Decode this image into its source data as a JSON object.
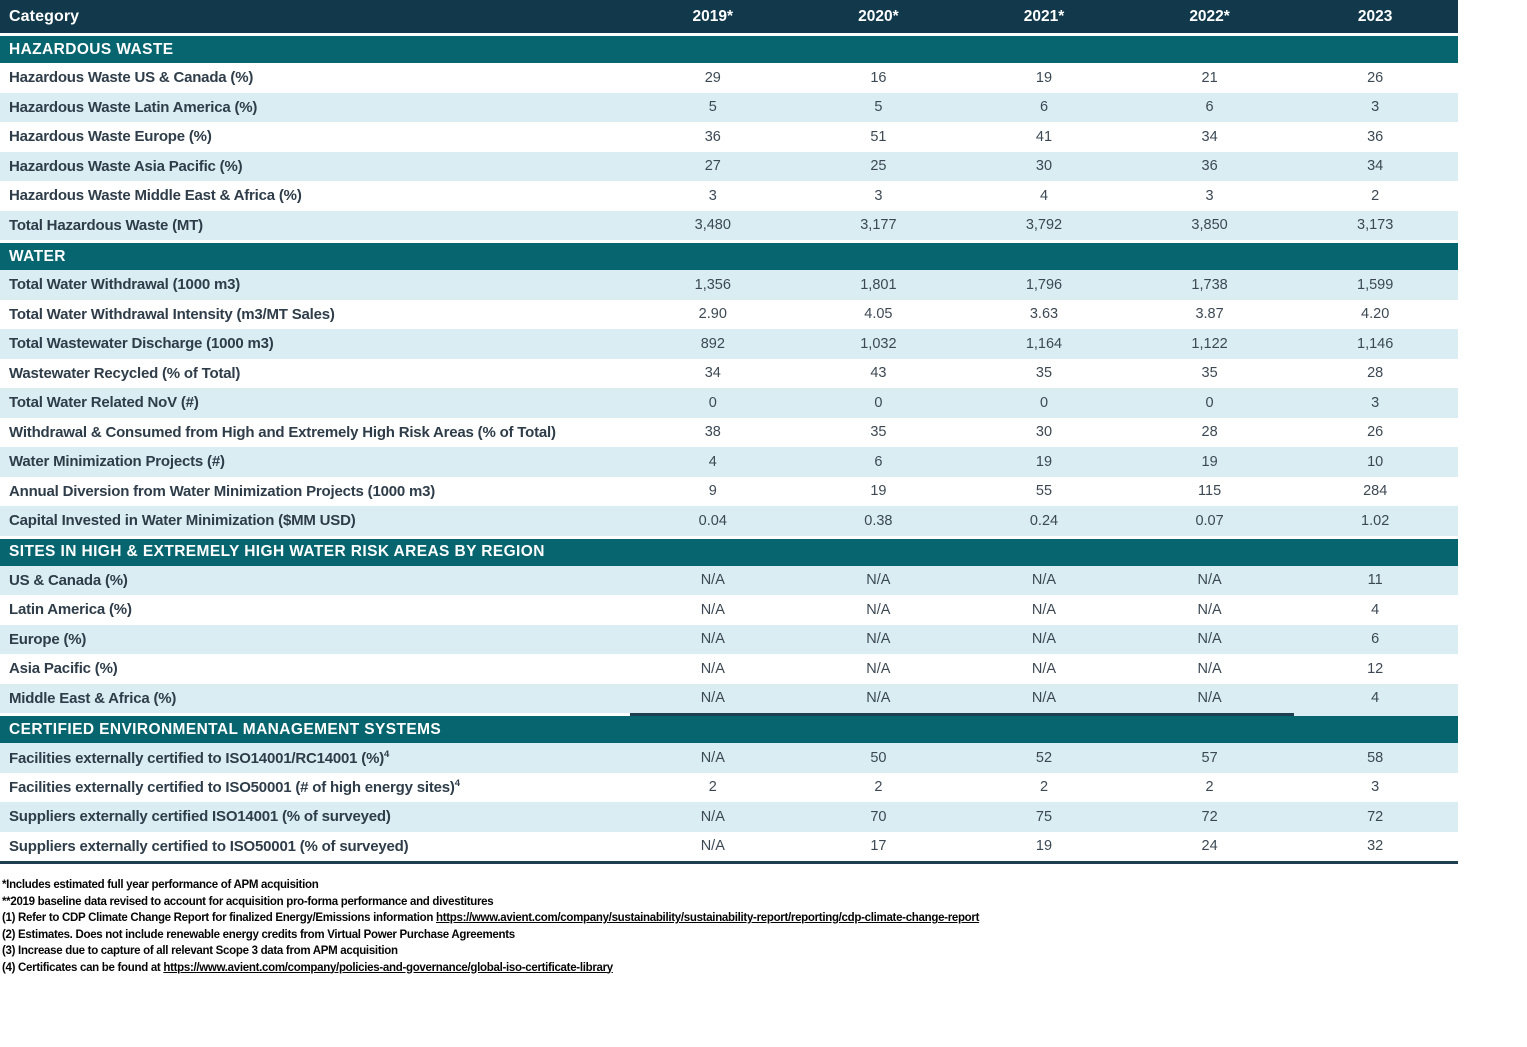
{
  "colors": {
    "header_bg": "#11394b",
    "header_text": "#ffffff",
    "section_bg": "#06656f",
    "row_light": "#d9edf2",
    "label_text": "#2e3d49",
    "value_text": "#3c4954",
    "rule_dark": "#1e3f50"
  },
  "table": {
    "header": {
      "category_label": "Category",
      "years": [
        "2019*",
        "2020*",
        "2021*",
        "2022*",
        "2023"
      ]
    },
    "sections": [
      {
        "title": "HAZARDOUS WASTE",
        "first_row_shade": "white",
        "rows": [
          {
            "label": "Hazardous Waste US & Canada (%)",
            "values": [
              "29",
              "16",
              "19",
              "21",
              "26"
            ]
          },
          {
            "label": "Hazardous Waste Latin America (%)",
            "values": [
              "5",
              "5",
              "6",
              "6",
              "3"
            ]
          },
          {
            "label": "Hazardous Waste Europe (%)",
            "values": [
              "36",
              "51",
              "41",
              "34",
              "36"
            ]
          },
          {
            "label": "Hazardous Waste Asia Pacific (%)",
            "values": [
              "27",
              "25",
              "30",
              "36",
              "34"
            ]
          },
          {
            "label": "Hazardous Waste Middle East & Africa (%)",
            "values": [
              "3",
              "3",
              "4",
              "3",
              "2"
            ]
          },
          {
            "label": "Total Hazardous Waste (MT)",
            "values": [
              "3,480",
              "3,177",
              "3,792",
              "3,850",
              "3,173"
            ]
          }
        ]
      },
      {
        "title": "WATER",
        "first_row_shade": "light",
        "rows": [
          {
            "label": "Total Water Withdrawal (1000 m3)",
            "values": [
              "1,356",
              "1,801",
              "1,796",
              "1,738",
              "1,599"
            ]
          },
          {
            "label": "Total Water Withdrawal Intensity (m3/MT Sales)",
            "values": [
              "2.90",
              "4.05",
              "3.63",
              "3.87",
              "4.20"
            ]
          },
          {
            "label": "Total Wastewater Discharge (1000 m3)",
            "values": [
              "892",
              "1,032",
              "1,164",
              "1,122",
              "1,146"
            ]
          },
          {
            "label": "Wastewater Recycled (% of Total)",
            "values": [
              "34",
              "43",
              "35",
              "35",
              "28"
            ]
          },
          {
            "label": "Total Water Related NoV (#)",
            "values": [
              "0",
              "0",
              "0",
              "0",
              "3"
            ]
          },
          {
            "label": "Withdrawal & Consumed from High and Extremely High Risk Areas (% of Total)",
            "values": [
              "38",
              "35",
              "30",
              "28",
              "26"
            ]
          },
          {
            "label": "Water Minimization Projects (#)",
            "values": [
              "4",
              "6",
              "19",
              "19",
              "10"
            ]
          },
          {
            "label": "Annual Diversion from Water Minimization Projects (1000 m3)",
            "values": [
              "9",
              "19",
              "55",
              "115",
              "284"
            ]
          },
          {
            "label": "Capital Invested in Water Minimization ($MM USD)",
            "values": [
              "0.04",
              "0.38",
              "0.24",
              "0.07",
              "1.02"
            ]
          }
        ]
      },
      {
        "title": "SITES IN HIGH & EXTREMELY HIGH WATER RISK AREAS BY REGION",
        "first_row_shade": "light",
        "partial_rule_below_last_row": true,
        "rows": [
          {
            "label": "US & Canada (%)",
            "values": [
              "N/A",
              "N/A",
              "N/A",
              "N/A",
              "11"
            ]
          },
          {
            "label": "Latin America (%)",
            "values": [
              "N/A",
              "N/A",
              "N/A",
              "N/A",
              "4"
            ]
          },
          {
            "label": "Europe (%)",
            "values": [
              "N/A",
              "N/A",
              "N/A",
              "N/A",
              "6"
            ]
          },
          {
            "label": "Asia Pacific (%)",
            "values": [
              "N/A",
              "N/A",
              "N/A",
              "N/A",
              "12"
            ]
          },
          {
            "label": "Middle East & Africa (%)",
            "values": [
              "N/A",
              "N/A",
              "N/A",
              "N/A",
              "4"
            ]
          }
        ]
      },
      {
        "title": "CERTIFIED ENVIRONMENTAL MANAGEMENT SYSTEMS",
        "first_row_shade": "light",
        "rows": [
          {
            "label": "Facilities externally certified to ISO14001/RC14001 (%)",
            "sup": "4",
            "values": [
              "N/A",
              "50",
              "52",
              "57",
              "58"
            ]
          },
          {
            "label": "Facilities externally certified to ISO50001 (# of high energy sites)",
            "sup": "4",
            "values": [
              "2",
              "2",
              "2",
              "2",
              "3"
            ]
          },
          {
            "label": "Suppliers externally certified ISO14001 (% of surveyed)",
            "values": [
              "N/A",
              "70",
              "75",
              "72",
              "72"
            ]
          },
          {
            "label": "Suppliers externally certified to ISO50001 (% of surveyed)",
            "values": [
              "N/A",
              "17",
              "19",
              "24",
              "32"
            ]
          }
        ]
      }
    ]
  },
  "footnotes": [
    {
      "segments": [
        {
          "t": "*Includes estimated full year performance of APM acquisition"
        }
      ]
    },
    {
      "segments": [
        {
          "t": "**2019 baseline data revised to account for acquisition pro-forma performance and divestitures"
        }
      ]
    },
    {
      "segments": [
        {
          "t": "(1) Refer to CDP Climate Change Report for finalized Energy/Emissions information "
        },
        {
          "t": "https://www.avient.com/company/sustainability/sustainability-report/reporting/cdp-climate-change-report",
          "link": true
        }
      ]
    },
    {
      "segments": [
        {
          "t": "(2) Estimates. Does not include renewable energy credits from Virtual Power Purchase Agreements"
        }
      ]
    },
    {
      "segments": [
        {
          "t": "(3) Increase due to capture of all relevant Scope 3 data from APM acquisition"
        }
      ]
    },
    {
      "segments": [
        {
          "t": "(4) Certificates can be found at "
        },
        {
          "t": "https://www.avient.com/company/policies-and-governance/global-iso-certificate-library",
          "link": true
        }
      ]
    }
  ]
}
